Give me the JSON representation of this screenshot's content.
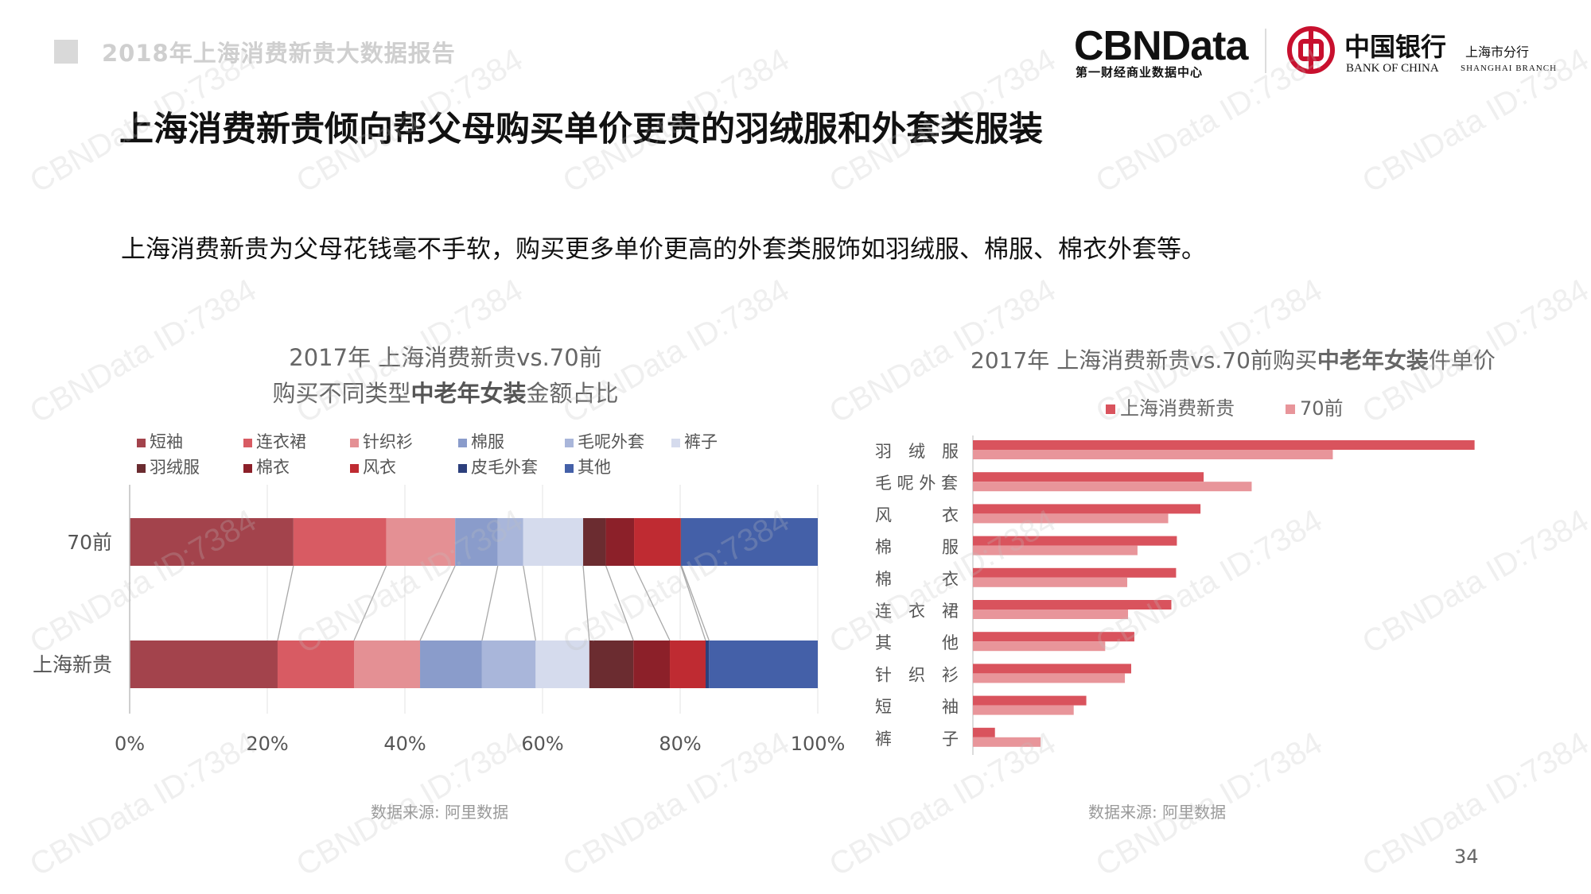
{
  "header": {
    "report_title": "2018年上海消费新贵大数据报告",
    "cbn_logo": "CBNData",
    "cbn_sub": "第一财经商业数据中心",
    "boc_cn": "中国银行",
    "boc_en": "BANK OF CHINA",
    "boc_branch": "上海市分行",
    "boc_branch_en": "SHANGHAI BRANCH"
  },
  "main_title": "上海消费新贵倾向帮父母购买单价更贵的羽绒服和外套类服装",
  "subtitle": "上海消费新贵为父母花钱毫不手软，购买更多单价更高的外套类服饰如羽绒服、棉服、棉衣外套等。",
  "left_chart": {
    "title_line1": "2017年 上海消费新贵vs.70前",
    "title_line2_prefix": "购买不同类型",
    "title_line2_bold": "中老年女装",
    "title_line2_suffix": "金额占比",
    "source": "数据来源: 阿里数据"
  },
  "right_chart": {
    "title_prefix": "2017年 上海消费新贵vs.70前购买",
    "title_bold": "中老年女装",
    "title_suffix": "件单价",
    "source": "数据来源: 阿里数据"
  },
  "page_number": "34",
  "watermark": "CBNData ID:7384",
  "chart_data": [
    {
      "type": "bar",
      "stacked": true,
      "orientation": "horizontal",
      "unit": "percent",
      "categories": [
        "70前",
        "上海新贵"
      ],
      "xlim": [
        0,
        100
      ],
      "x_ticks": [
        "0%",
        "20%",
        "40%",
        "60%",
        "80%",
        "100%"
      ],
      "legend_position": "top",
      "series": [
        {
          "name": "短袖",
          "color": "#a3434c",
          "values": [
            23.8,
            21.5
          ]
        },
        {
          "name": "连衣裙",
          "color": "#d85b63",
          "values": [
            13.5,
            11.1
          ]
        },
        {
          "name": "针织衫",
          "color": "#e49094",
          "values": [
            10.0,
            9.6
          ]
        },
        {
          "name": "棉服",
          "color": "#8a9ccb",
          "values": [
            6.2,
            9.0
          ]
        },
        {
          "name": "毛呢外套",
          "color": "#a9b6da",
          "values": [
            3.7,
            7.8
          ]
        },
        {
          "name": "裤子",
          "color": "#d5dbed",
          "values": [
            8.7,
            7.8
          ]
        },
        {
          "name": "羽绒服",
          "color": "#6b2c30",
          "values": [
            3.3,
            6.4
          ]
        },
        {
          "name": "棉衣",
          "color": "#8c2029",
          "values": [
            4.1,
            5.3
          ]
        },
        {
          "name": "风衣",
          "color": "#bf2b32",
          "values": [
            6.8,
            5.2
          ]
        },
        {
          "name": "皮毛外套",
          "color": "#2c3f7c",
          "values": [
            0.1,
            0.5
          ]
        },
        {
          "name": "其他",
          "color": "#4460a8",
          "values": [
            19.8,
            15.8
          ]
        }
      ]
    },
    {
      "type": "bar",
      "orientation": "horizontal",
      "categories": [
        "羽绒服",
        "毛呢外套",
        "风衣",
        "棉服",
        "棉衣",
        "连衣裙",
        "其他",
        "针织衫",
        "短袖",
        "裤子"
      ],
      "category_labels": [
        "羽　绒　服",
        "毛 呢 外 套",
        "风　　　衣",
        "棉　　　服",
        "棉　　　衣",
        "连　衣　裙",
        "其　　　他",
        "针　织　衫",
        "短　　　袖",
        "裤　　　子"
      ],
      "legend_position": "top",
      "series": [
        {
          "name": "上海消费新贵",
          "color": "#d9535d",
          "values": [
            637,
            293,
            289,
            259,
            258,
            252,
            205,
            201,
            144,
            28
          ]
        },
        {
          "name": "70前",
          "color": "#e8959a",
          "values": [
            457,
            354,
            248,
            209,
            196,
            197,
            168,
            193,
            128,
            86
          ]
        }
      ]
    }
  ]
}
